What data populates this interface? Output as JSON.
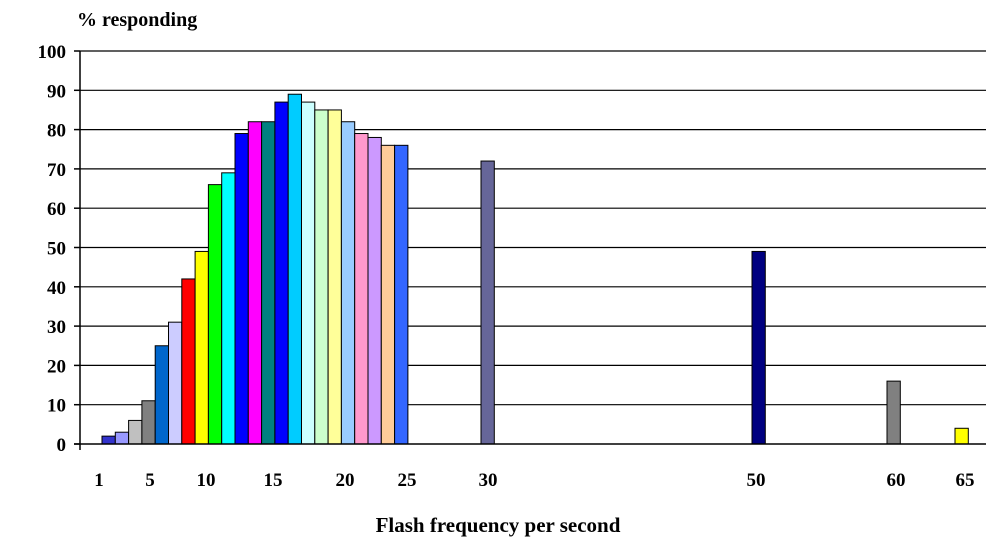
{
  "chart_data": {
    "type": "bar",
    "ylabel": "% responding",
    "xlabel": "Flash frequency per second",
    "ylim": [
      0,
      100
    ],
    "yticks": [
      0,
      10,
      20,
      30,
      40,
      50,
      60,
      70,
      80,
      90,
      100
    ],
    "xtick_labels": [
      "1",
      "5",
      "10",
      "15",
      "20",
      "25",
      "30",
      "50",
      "60",
      "65"
    ],
    "grid": true,
    "legend": "none",
    "bars": [
      {
        "x": 1,
        "value": 2,
        "color": "#3333cc"
      },
      {
        "x": 2,
        "value": 3,
        "color": "#9999ff"
      },
      {
        "x": 3,
        "value": 6,
        "color": "#c0c0c0"
      },
      {
        "x": 4,
        "value": 11,
        "color": "#808080"
      },
      {
        "x": 5,
        "value": 25,
        "color": "#0066cc"
      },
      {
        "x": 6,
        "value": 31,
        "color": "#ccccff"
      },
      {
        "x": 7,
        "value": 42,
        "color": "#ff0000"
      },
      {
        "x": 8,
        "value": 49,
        "color": "#ffff00"
      },
      {
        "x": 9,
        "value": 66,
        "color": "#00ff00"
      },
      {
        "x": 10,
        "value": 69,
        "color": "#00ffff"
      },
      {
        "x": 11,
        "value": 79,
        "color": "#0000ff"
      },
      {
        "x": 12,
        "value": 82,
        "color": "#ff00ff"
      },
      {
        "x": 13,
        "value": 82,
        "color": "#008080"
      },
      {
        "x": 14,
        "value": 87,
        "color": "#0000ff"
      },
      {
        "x": 15,
        "value": 89,
        "color": "#00ccff"
      },
      {
        "x": 16,
        "value": 87,
        "color": "#ccffff"
      },
      {
        "x": 17,
        "value": 85,
        "color": "#ccffcc"
      },
      {
        "x": 18,
        "value": 85,
        "color": "#ffff99"
      },
      {
        "x": 19,
        "value": 82,
        "color": "#99ccff"
      },
      {
        "x": 20,
        "value": 79,
        "color": "#ff99cc"
      },
      {
        "x": 21,
        "value": 78,
        "color": "#cc99ff"
      },
      {
        "x": 22,
        "value": 76,
        "color": "#ffcc99"
      },
      {
        "x": 23,
        "value": 76,
        "color": "#3366ff"
      },
      {
        "x": 30,
        "value": 72,
        "color": "#666699"
      },
      {
        "x": 50,
        "value": 49,
        "color": "#000080"
      },
      {
        "x": 60,
        "value": 16,
        "color": "#808080"
      },
      {
        "x": 65,
        "value": 4,
        "color": "#ffff00"
      }
    ]
  }
}
